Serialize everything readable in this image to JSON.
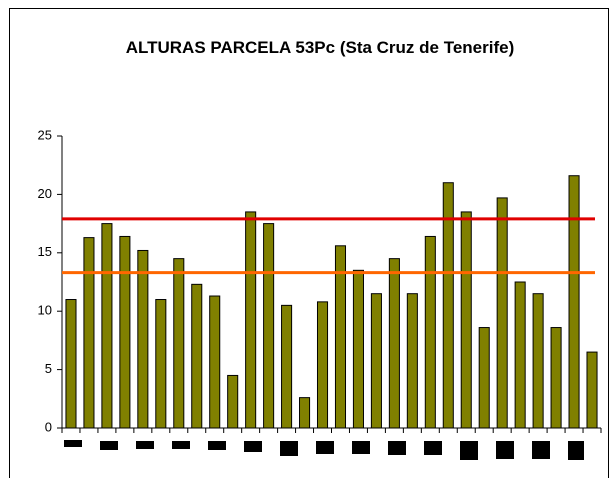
{
  "chart_data": {
    "type": "bar",
    "title": "ALTURAS PARCELA 53Pc (Sta Cruz de Tenerife)",
    "categories": [
      null,
      null,
      null,
      null,
      null,
      null,
      null,
      null,
      null,
      null,
      null,
      null,
      null,
      null,
      null,
      null,
      null,
      null,
      null,
      null,
      null,
      null,
      null,
      null,
      null,
      null,
      null,
      null,
      null,
      null
    ],
    "values": [
      11,
      16.3,
      17.5,
      16.4,
      15.2,
      11,
      14.5,
      12.3,
      11.3,
      4.5,
      18.5,
      17.5,
      10.5,
      2.6,
      10.8,
      15.6,
      13.5,
      11.5,
      14.5,
      11.5,
      16.4,
      21,
      18.5,
      8.6,
      19.7,
      12.5,
      11.5,
      8.6,
      21.6,
      6.5
    ],
    "color": "#808000",
    "ylim": [
      0,
      25
    ],
    "yticks": [
      0,
      5,
      10,
      15,
      20,
      25
    ],
    "reference_lines": [
      {
        "value": 17.9,
        "color": "#e00000"
      },
      {
        "value": 13.3,
        "color": "#ff6600"
      }
    ]
  }
}
